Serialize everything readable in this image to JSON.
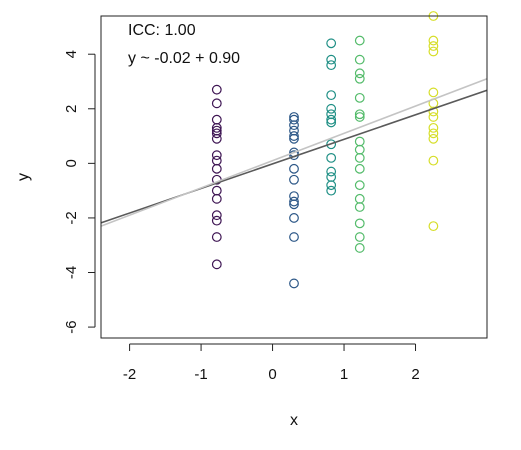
{
  "chart_data": {
    "type": "scatter",
    "xlabel": "x",
    "ylabel": "y",
    "xlim": [
      -2.4,
      3.0
    ],
    "ylim": [
      -6.4,
      5.4
    ],
    "x_ticks": [
      -2,
      -1,
      0,
      1,
      2
    ],
    "y_ticks": [
      -6,
      -4,
      -2,
      0,
      2,
      4
    ],
    "grid": false,
    "annotations": [
      "ICC: 1.00",
      "y ~ -0.02 + 0.90"
    ],
    "lines": [
      {
        "intercept": -0.02,
        "slope": 0.9,
        "color": "#5a5a5a"
      },
      {
        "intercept": 0.1,
        "slope": 1.0,
        "color": "#c4c4c4"
      }
    ],
    "series": [
      {
        "x": -0.78,
        "color": "#3e1553",
        "y": [
          2.7,
          2.2,
          1.6,
          1.3,
          1.2,
          1.1,
          0.9,
          0.3,
          0.1,
          -0.2,
          -0.6,
          -1.0,
          -1.3,
          -1.9,
          -2.1,
          -2.7,
          -3.7
        ]
      },
      {
        "x": 0.3,
        "color": "#2c5787",
        "y": [
          1.7,
          1.6,
          1.4,
          1.2,
          1.0,
          0.9,
          0.4,
          0.3,
          -0.2,
          -0.6,
          -1.2,
          -1.4,
          -1.5,
          -2.0,
          -2.7,
          -4.4
        ]
      },
      {
        "x": 0.82,
        "color": "#1f8f85",
        "y": [
          4.4,
          3.8,
          3.6,
          2.5,
          2.0,
          1.8,
          1.6,
          1.5,
          0.7,
          0.2,
          -0.3,
          -0.5,
          -0.8,
          -1.0
        ]
      },
      {
        "x": 1.22,
        "color": "#53bb6a",
        "y": [
          4.5,
          3.8,
          3.3,
          3.1,
          2.4,
          1.8,
          1.7,
          0.8,
          0.5,
          0.2,
          -0.2,
          -0.8,
          -1.3,
          -1.6,
          -2.2,
          -2.7,
          -3.1
        ]
      },
      {
        "x": 2.25,
        "color": "#d6de29",
        "y": [
          5.4,
          4.5,
          4.3,
          4.1,
          2.6,
          2.2,
          1.9,
          1.7,
          1.3,
          1.1,
          0.9,
          0.1,
          -2.3
        ]
      }
    ]
  }
}
